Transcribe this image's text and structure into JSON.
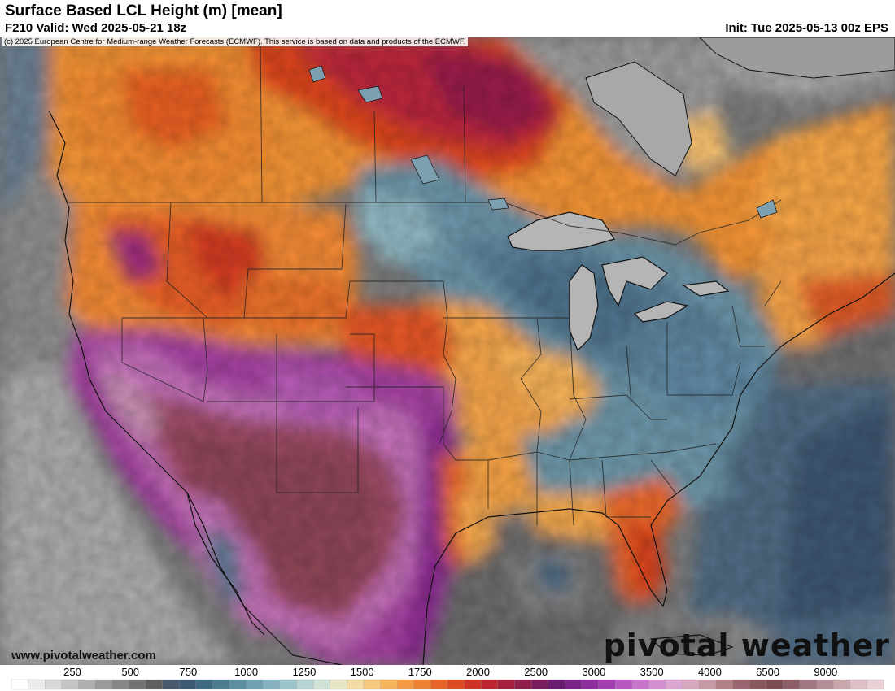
{
  "header": {
    "title": "Surface Based LCL Height (m) [mean]",
    "valid": "F210 Valid: Wed 2025-05-21 18z",
    "init": "Init: Tue 2025-05-13 00z EPS"
  },
  "map": {
    "copyright": "(c) 2025 European Centre for Medium-range Weather Forecasts (ECMWF). This service is based on data and products of the ECMWF.",
    "website": "www.pivotalweather.com",
    "brand_main": "pivotal weather",
    "brand_accent_color": "#f0a028"
  },
  "legend": {
    "labels": [
      "250",
      "500",
      "750",
      "1000",
      "1250",
      "1500",
      "1750",
      "2000",
      "2500",
      "3000",
      "3500",
      "4000",
      "6500",
      "9000"
    ],
    "colors": [
      "#ffffff",
      "#ececec",
      "#d8d8d8",
      "#c4c4c4",
      "#afafaf",
      "#9b9b9b",
      "#878787",
      "#737373",
      "#5f5f5f",
      "#4a5a6e",
      "#3d5a75",
      "#3e6b82",
      "#4a7b8f",
      "#5b8ea0",
      "#6fa1b0",
      "#86b3bf",
      "#9cc4cb",
      "#b6d3d2",
      "#cfe0d4",
      "#e7e6c6",
      "#f3dca3",
      "#f6c97c",
      "#f6b45c",
      "#f39a43",
      "#ee8032",
      "#e66427",
      "#dc4a22",
      "#cd3426",
      "#bc2630",
      "#a6213d",
      "#8f1e4b",
      "#7a1c5c",
      "#6a1d70",
      "#7a2388",
      "#8e2d9e",
      "#a43db2",
      "#b957c2",
      "#c974cc",
      "#d58fd2",
      "#dca6d2",
      "#d8a6bd",
      "#c99aa6",
      "#b48088",
      "#9a6470",
      "#8a5660",
      "#7e4c55",
      "#8e5e68",
      "#a07680",
      "#b48e96",
      "#c8a6ac",
      "#dcbec4",
      "#e8d0d4"
    ],
    "tick_units": "m"
  }
}
